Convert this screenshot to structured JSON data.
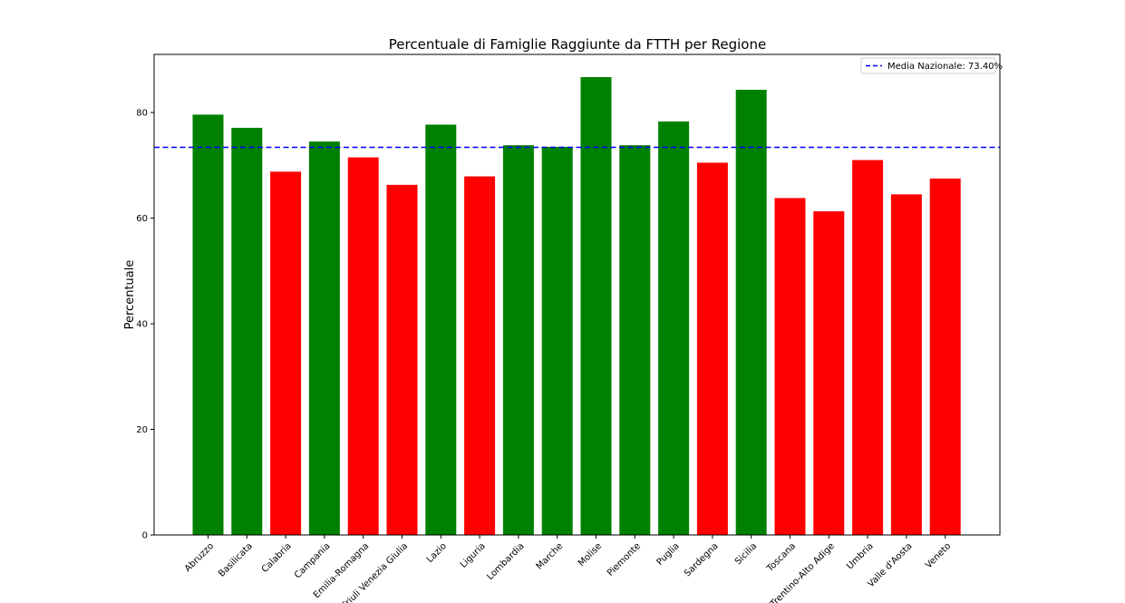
{
  "chart_data": {
    "type": "bar",
    "title": "Percentuale di Famiglie Raggiunte da FTTH per Regione",
    "xlabel": "",
    "ylabel": "Percentuale",
    "categories": [
      "Abruzzo",
      "Basilicata",
      "Calabria",
      "Campania",
      "Emilia-Romagna",
      "Friuli Venezia Giulia",
      "Lazio",
      "Liguria",
      "Lombardia",
      "Marche",
      "Molise",
      "Piemonte",
      "Puglia",
      "Sardegna",
      "Sicilia",
      "Toscana",
      "Trentino-Alto Adige",
      "Umbria",
      "Valle d'Aosta",
      "Veneto"
    ],
    "values": [
      79.6,
      77.1,
      68.8,
      74.5,
      71.5,
      66.3,
      77.7,
      67.9,
      73.8,
      73.5,
      86.7,
      73.8,
      78.3,
      70.5,
      84.3,
      63.8,
      61.3,
      71.0,
      64.5,
      67.5
    ],
    "ylim": [
      0,
      91
    ],
    "yticks": [
      0,
      20,
      40,
      60,
      80
    ],
    "colors": {
      "above": "#008000",
      "below": "#ff0000",
      "reference_line": "#0000ff"
    },
    "reference_line": {
      "value": 73.4,
      "label": "Media Nazionale: 73.40%",
      "style": "dashed"
    },
    "legend_position": "top-right",
    "grid": false
  }
}
